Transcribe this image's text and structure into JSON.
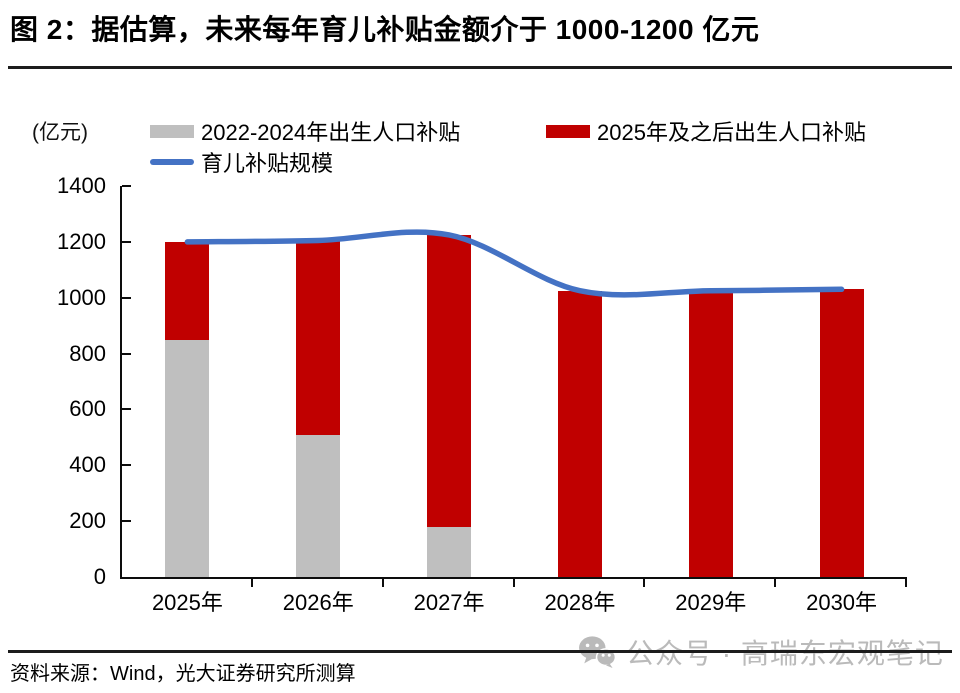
{
  "page": {
    "title": "图 2：据估算，未来每年育儿补贴金额介于 1000-1200 亿元",
    "unit_label": "(亿元)",
    "source_note": "资料来源：Wind，光大证券研究所测算",
    "watermark_text": "公众号 · 高瑞东宏观笔记"
  },
  "colors": {
    "bar_gray": "#BFBFBF",
    "bar_red": "#C00000",
    "line_blue": "#4472C4",
    "axis": "#0D0D0D",
    "watermark_gray": "#B5B5B5"
  },
  "chart_data": {
    "type": "bar",
    "subtype": "stacked-bars-with-smooth-line-overlay",
    "title": "图 2：据估算，未来每年育儿补贴金额介于 1000-1200 亿元",
    "unit": "亿元",
    "categories": [
      "2025年",
      "2026年",
      "2027年",
      "2028年",
      "2029年",
      "2030年"
    ],
    "series": [
      {
        "name": "2022-2024年出生人口补贴",
        "type": "bar",
        "stacked": true,
        "color": "#BFBFBF",
        "values": [
          850,
          510,
          180,
          0,
          0,
          0
        ]
      },
      {
        "name": "2025年及之后出生人口补贴",
        "type": "bar",
        "stacked": true,
        "color": "#C00000",
        "values": [
          350,
          695,
          1045,
          1025,
          1025,
          1030
        ]
      },
      {
        "name": "育儿补贴规模",
        "type": "line",
        "smooth": true,
        "color": "#4472C4",
        "values": [
          1200,
          1205,
          1225,
          1025,
          1025,
          1030
        ]
      }
    ],
    "stacked_totals": [
      1200,
      1205,
      1225,
      1025,
      1025,
      1030
    ],
    "yaxis": {
      "label": "(亿元)",
      "min": 0,
      "max": 1400,
      "step": 200,
      "ticks": [
        0,
        200,
        400,
        600,
        800,
        1000,
        1200,
        1400
      ]
    },
    "xlabel": "",
    "ylabel": "(亿元)",
    "legend_position": "top",
    "grid": false
  }
}
